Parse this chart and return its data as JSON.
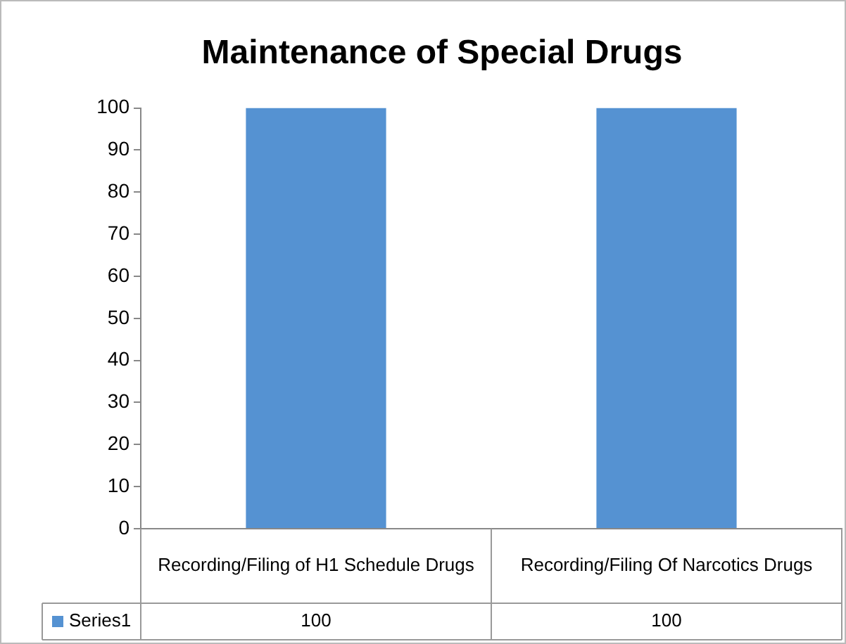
{
  "chart_data": {
    "type": "bar",
    "title": "Maintenance of Special Drugs",
    "categories": [
      "Recording/Filing of H1 Schedule Drugs",
      "Recording/Filing Of Narcotics Drugs"
    ],
    "series": [
      {
        "name": "Series1",
        "color": "#5592d2",
        "values": [
          100,
          100
        ]
      }
    ],
    "ylim": [
      0,
      100
    ],
    "yticks": [
      0,
      10,
      20,
      30,
      40,
      50,
      60,
      70,
      80,
      90,
      100
    ],
    "grid": false,
    "data_labels": true
  }
}
